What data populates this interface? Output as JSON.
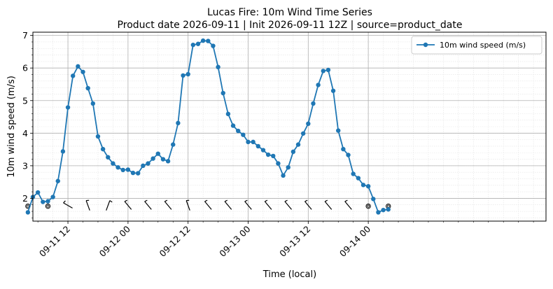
{
  "chart_data": {
    "type": "line",
    "title_line1": "Lucas Fire: 10m Wind Time Series",
    "title_line2": "Product date 2026-09-11 | Init 2026-09-11 12Z | source=product_date",
    "xlabel": "Time (local)",
    "ylabel": "10m wind speed (m/s)",
    "x_unit": "hours since 2026-09-11 00:00 local",
    "x_range": [
      5.0,
      107.5
    ],
    "ylim": [
      1.3,
      7.1
    ],
    "y_ticks": [
      2,
      3,
      4,
      5,
      6,
      7
    ],
    "x_ticks": [
      {
        "x": 12,
        "label": "09-11 12"
      },
      {
        "x": 24,
        "label": "09-12 00"
      },
      {
        "x": 36,
        "label": "09-12 12"
      },
      {
        "x": 48,
        "label": "09-13 00"
      },
      {
        "x": 60,
        "label": "09-13 12"
      },
      {
        "x": 72,
        "label": "09-14 00"
      }
    ],
    "grid": true,
    "legend_position": "top-right",
    "series_color": "#1f77b4",
    "series": [
      {
        "name": "10m wind speed (m/s)",
        "x": [
          4,
          5,
          6,
          7,
          8,
          9,
          10,
          11,
          12,
          13,
          14,
          15,
          16,
          17,
          18,
          19,
          20,
          21,
          22,
          23,
          24,
          25,
          26,
          27,
          28,
          29,
          30,
          31,
          32,
          33,
          34,
          35,
          36,
          37,
          38,
          39,
          40,
          41,
          42,
          43,
          44,
          45,
          46,
          47,
          48,
          49,
          50,
          51,
          52,
          53,
          54,
          55,
          56,
          57,
          58,
          59,
          60,
          61,
          62,
          63,
          64,
          65,
          66,
          67,
          68,
          69,
          70,
          71,
          72,
          73,
          74,
          75,
          76
        ],
        "values": [
          1.57,
          2.04,
          2.18,
          1.89,
          1.91,
          2.04,
          2.53,
          3.44,
          4.79,
          5.76,
          6.05,
          5.88,
          5.38,
          4.91,
          3.9,
          3.51,
          3.26,
          3.07,
          2.95,
          2.87,
          2.88,
          2.78,
          2.77,
          3.0,
          3.07,
          3.22,
          3.37,
          3.2,
          3.14,
          3.65,
          4.31,
          5.77,
          5.81,
          6.71,
          6.74,
          6.84,
          6.83,
          6.68,
          6.03,
          5.23,
          4.59,
          4.23,
          4.07,
          3.95,
          3.73,
          3.73,
          3.6,
          3.48,
          3.34,
          3.3,
          3.07,
          2.7,
          2.95,
          3.43,
          3.65,
          3.99,
          4.29,
          4.91,
          5.48,
          5.91,
          5.94,
          5.3,
          4.08,
          3.51,
          3.33,
          2.75,
          2.62,
          2.41,
          2.37,
          1.98,
          1.57,
          1.64,
          1.66
        ]
      }
    ],
    "wind_barbs": {
      "y": 1.78,
      "items": [
        {
          "x": 4,
          "calm": true
        },
        {
          "x": 8,
          "calm": true
        },
        {
          "x": 12,
          "calm": false,
          "from_deg": 300
        },
        {
          "x": 16,
          "calm": false,
          "from_deg": 340
        },
        {
          "x": 20,
          "calm": false,
          "from_deg": 20
        },
        {
          "x": 24,
          "calm": false,
          "from_deg": 320
        },
        {
          "x": 28,
          "calm": false,
          "from_deg": 320
        },
        {
          "x": 32,
          "calm": false,
          "from_deg": 320
        },
        {
          "x": 36,
          "calm": false,
          "from_deg": 340
        },
        {
          "x": 40,
          "calm": false,
          "from_deg": 320
        },
        {
          "x": 44,
          "calm": false,
          "from_deg": 320
        },
        {
          "x": 48,
          "calm": false,
          "from_deg": 320
        },
        {
          "x": 52,
          "calm": false,
          "from_deg": 320
        },
        {
          "x": 56,
          "calm": false,
          "from_deg": 320
        },
        {
          "x": 60,
          "calm": false,
          "from_deg": 320
        },
        {
          "x": 64,
          "calm": false,
          "from_deg": 320
        },
        {
          "x": 68,
          "calm": false,
          "from_deg": 320
        },
        {
          "x": 72,
          "calm": true
        },
        {
          "x": 76,
          "calm": true
        }
      ]
    }
  }
}
